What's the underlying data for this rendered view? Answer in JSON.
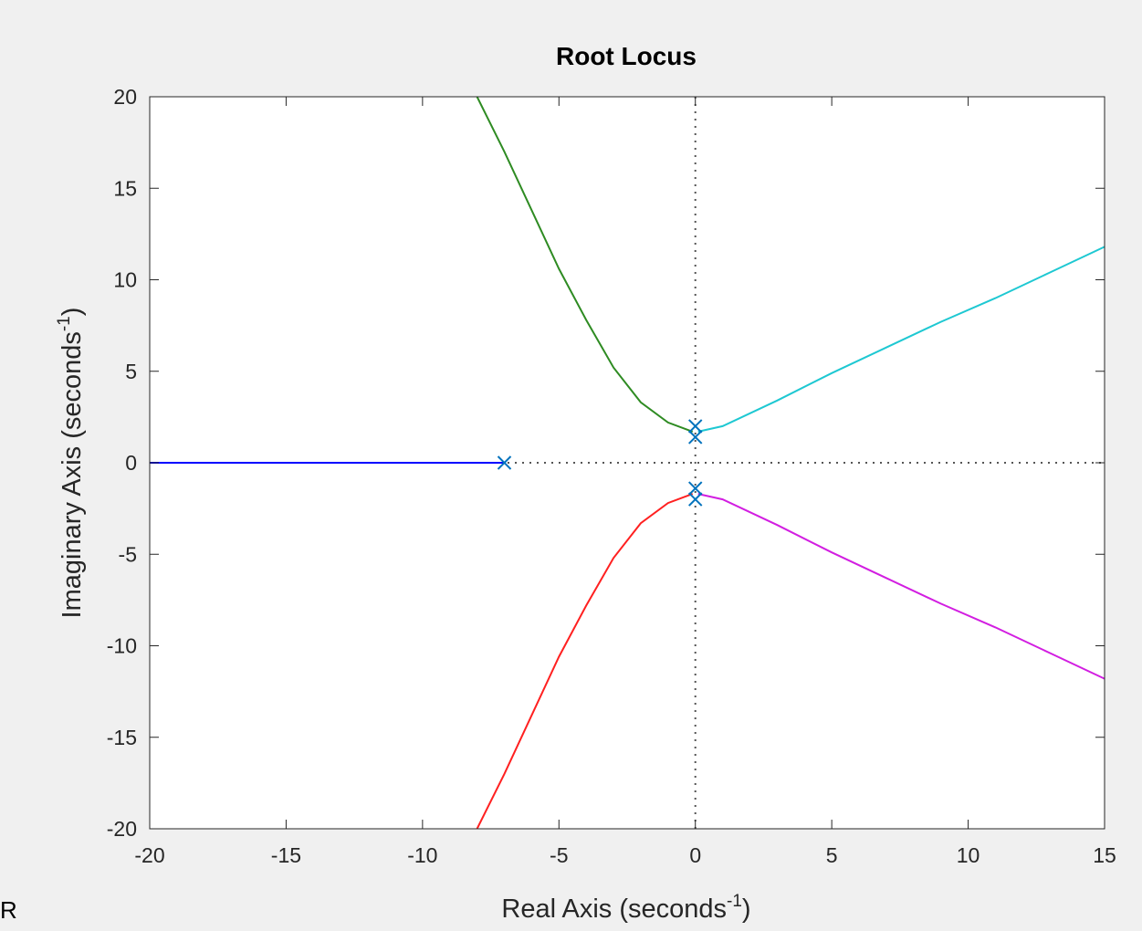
{
  "chart_data": {
    "type": "line",
    "title": "Root Locus",
    "xlabel": "Real Axis (seconds",
    "xlabel_sup": "-1",
    "xlabel_close": ")",
    "ylabel": "Imaginary Axis (seconds",
    "ylabel_sup": "-1",
    "ylabel_close": ")",
    "xlim": [
      -20,
      15
    ],
    "ylim": [
      -20,
      20
    ],
    "xticks": [
      "-20",
      "-15",
      "-10",
      "-5",
      "0",
      "5",
      "10",
      "15"
    ],
    "yticks": [
      "-20",
      "-15",
      "-10",
      "-5",
      "0",
      "5",
      "10",
      "15",
      "20"
    ],
    "grid": false,
    "reference_lines": [
      "x=0",
      "y=0"
    ],
    "poles": [
      {
        "x": -7,
        "y": 0
      },
      {
        "x": 0,
        "y": 2
      },
      {
        "x": 0,
        "y": 1.4
      },
      {
        "x": 0,
        "y": -1.4
      },
      {
        "x": 0,
        "y": -2
      }
    ],
    "pole_color": "#0072bd",
    "series": [
      {
        "color": "#0000ff",
        "points": [
          [
            -7,
            0
          ],
          [
            -10,
            0
          ],
          [
            -15,
            0
          ],
          [
            -20,
            0
          ]
        ]
      },
      {
        "color": "#2e8b22",
        "points": [
          [
            -0.1,
            1.7
          ],
          [
            -1,
            2.2
          ],
          [
            -2,
            3.3
          ],
          [
            -3,
            5.2
          ],
          [
            -4,
            7.8
          ],
          [
            -5,
            10.6
          ],
          [
            -6,
            13.8
          ],
          [
            -7,
            17.0
          ],
          [
            -8,
            20.0
          ]
        ]
      },
      {
        "color": "#ff2020",
        "points": [
          [
            -0.1,
            -1.7
          ],
          [
            -1,
            -2.2
          ],
          [
            -2,
            -3.3
          ],
          [
            -3,
            -5.2
          ],
          [
            -4,
            -7.8
          ],
          [
            -5,
            -10.6
          ],
          [
            -6,
            -13.8
          ],
          [
            -7,
            -17.0
          ],
          [
            -8,
            -20.0
          ]
        ]
      },
      {
        "color": "#1ec8d2",
        "points": [
          [
            0.1,
            1.7
          ],
          [
            1,
            2.0
          ],
          [
            3,
            3.4
          ],
          [
            5,
            4.9
          ],
          [
            7,
            6.3
          ],
          [
            9,
            7.7
          ],
          [
            11,
            9.0
          ],
          [
            13,
            10.4
          ],
          [
            15,
            11.8
          ]
        ]
      },
      {
        "color": "#d21ee1",
        "points": [
          [
            0.1,
            -1.7
          ],
          [
            1,
            -2.0
          ],
          [
            3,
            -3.4
          ],
          [
            5,
            -4.9
          ],
          [
            7,
            -6.3
          ],
          [
            9,
            -7.7
          ],
          [
            11,
            -9.0
          ],
          [
            13,
            -10.4
          ],
          [
            15,
            -11.8
          ]
        ]
      }
    ]
  },
  "stray_text": "R"
}
